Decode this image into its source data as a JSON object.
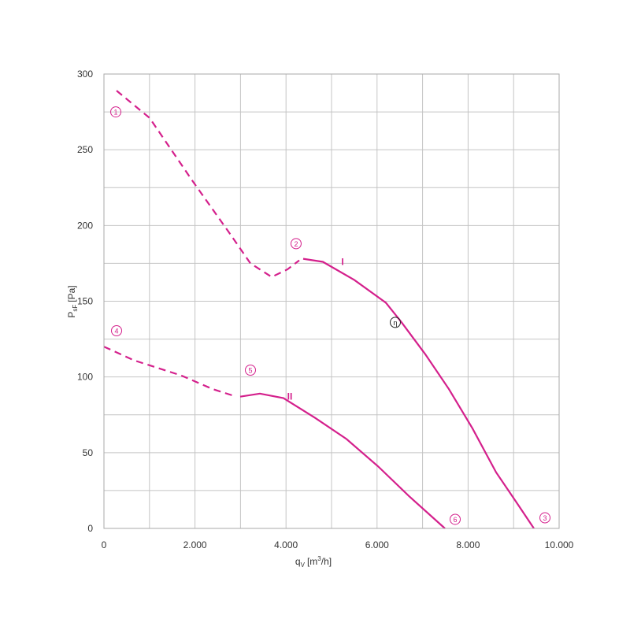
{
  "chart_data": {
    "type": "line",
    "ylabel": "P",
    "ylabel_sub": "sF",
    "ylabel_unit": "[Pa]",
    "xlabel": "q",
    "xlabel_sub": "V",
    "xlabel_unit_a": "[m",
    "xlabel_unit_sup": "3",
    "xlabel_unit_b": "/h]",
    "xlim": [
      0,
      10000
    ],
    "ylim": [
      0,
      300
    ],
    "xticks": [
      0,
      {
        "value": 2000,
        "label": "2.000"
      },
      {
        "value": 4000,
        "label": "4.000"
      },
      {
        "value": 6000,
        "label": "6.000"
      },
      {
        "value": 8000,
        "label": "8.000"
      },
      {
        "value": 10000,
        "label": "10.000"
      }
    ],
    "xminor": [
      1000,
      3000,
      5000,
      7000,
      9000
    ],
    "yticks": [
      0,
      50,
      100,
      150,
      200,
      250,
      300
    ],
    "yminor": [
      25,
      75,
      125,
      175,
      225,
      275
    ],
    "grid": true,
    "series": [
      {
        "name": "I",
        "color": "#d4208c",
        "label_x": 5242,
        "label_y": 176,
        "segments": [
          {
            "style": "dashed",
            "x": [
              277,
              1003,
              1955,
              2734,
              3218,
              3685,
              4031,
              4291
            ],
            "values": [
              289,
              271,
              229,
              196,
              175,
              166,
              171,
              177
            ]
          },
          {
            "style": "solid",
            "x": [
              4377,
              4810,
              5502,
              6194,
              6540,
              7059,
              7578,
              8097,
              8616,
              9135,
              9446
            ],
            "values": [
              178,
              176,
              164,
              149,
              136,
              115,
              92,
              66,
              37,
              14,
              0
            ]
          }
        ]
      },
      {
        "name": "II",
        "color": "#d4208c",
        "label_x": 4083,
        "label_y": 87,
        "segments": [
          {
            "style": "dashed",
            "x": [
              0,
              657,
              1695,
              2388,
              2907
            ],
            "values": [
              120,
              111,
              101,
              92,
              87
            ]
          },
          {
            "style": "solid",
            "x": [
              2993,
              3426,
              3945,
              4637,
              5329,
              6021,
              6713,
              7491
            ],
            "values": [
              87,
              89,
              86,
              73,
              59,
              41,
              21,
              0
            ]
          }
        ]
      }
    ],
    "annotations": [
      {
        "text": "1",
        "x": 260,
        "y": 275,
        "color": "#d4208c"
      },
      {
        "text": "2",
        "x": 4221,
        "y": 188,
        "color": "#d4208c"
      },
      {
        "text": "3",
        "x": 9689,
        "y": 7,
        "color": "#d4208c"
      },
      {
        "text": "4",
        "x": 277,
        "y": 130.5,
        "color": "#d4208c"
      },
      {
        "text": "5",
        "x": 3218,
        "y": 104.5,
        "color": "#d4208c"
      },
      {
        "text": "6",
        "x": 7716,
        "y": 6,
        "color": "#d4208c"
      },
      {
        "text": "η",
        "x": 6401,
        "y": 136,
        "color": "#222222"
      }
    ]
  }
}
